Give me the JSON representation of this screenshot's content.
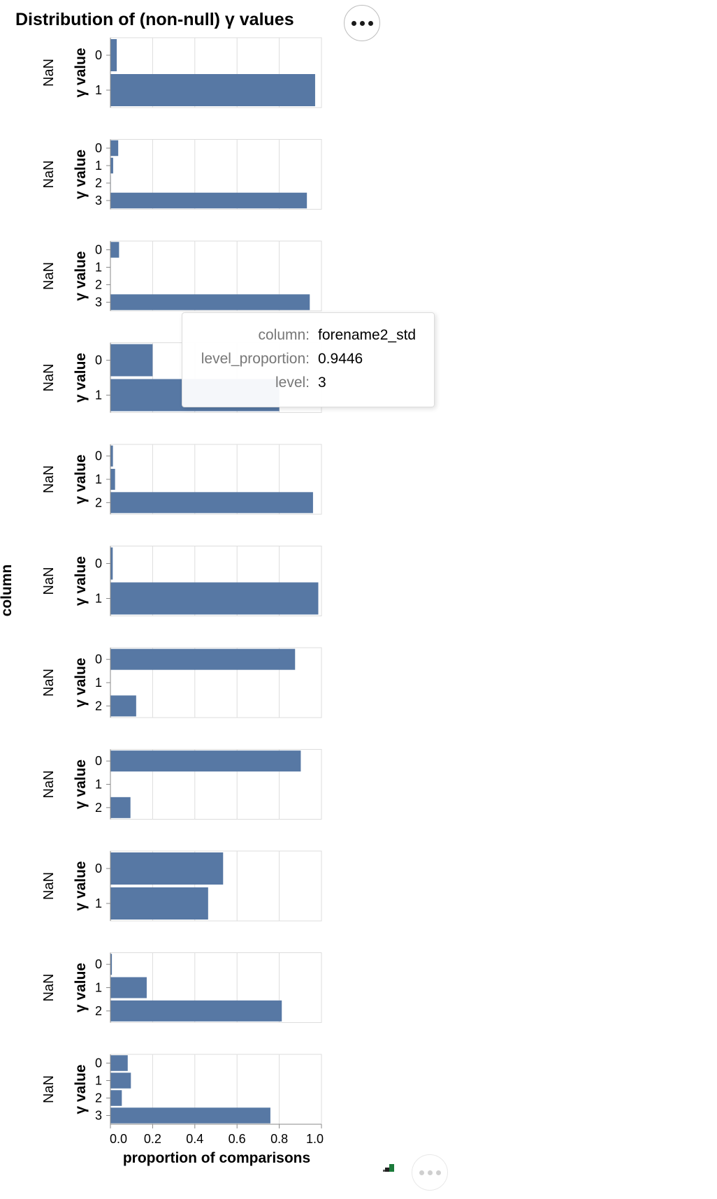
{
  "chart_data": {
    "type": "bar",
    "orientation": "horizontal",
    "title": "Distribution of (non-null) γ values",
    "xlabel": "proportion of comparisons",
    "ylabel": "γ value",
    "facet_label": "column",
    "facet_header": "NaN",
    "xlim": [
      0,
      1
    ],
    "x_ticks": [
      "0.0",
      "0.2",
      "0.4",
      "0.6",
      "0.8",
      "1.0"
    ],
    "grid": true,
    "bar_color": "#5778a4",
    "facets": [
      {
        "levels": [
          "0",
          "1"
        ],
        "values": [
          0.03,
          0.97
        ]
      },
      {
        "levels": [
          "0",
          "1",
          "2",
          "3"
        ],
        "values": [
          0.037,
          0.013,
          0.002,
          0.931
        ]
      },
      {
        "levels": [
          "0",
          "1",
          "2",
          "3"
        ],
        "values": [
          0.041,
          0.0,
          0.0,
          0.9446
        ]
      },
      {
        "levels": [
          "0",
          "1"
        ],
        "values": [
          0.2,
          0.8
        ]
      },
      {
        "levels": [
          "0",
          "1",
          "2"
        ],
        "values": [
          0.012,
          0.022,
          0.96
        ]
      },
      {
        "levels": [
          "0",
          "1"
        ],
        "values": [
          0.011,
          0.985
        ]
      },
      {
        "levels": [
          "0",
          "1",
          "2"
        ],
        "values": [
          0.875,
          0.0,
          0.122
        ]
      },
      {
        "levels": [
          "0",
          "1",
          "2"
        ],
        "values": [
          0.902,
          0.0,
          0.095
        ]
      },
      {
        "levels": [
          "0",
          "1"
        ],
        "values": [
          0.534,
          0.463
        ]
      },
      {
        "levels": [
          "0",
          "1",
          "2"
        ],
        "values": [
          0.007,
          0.172,
          0.812
        ]
      },
      {
        "levels": [
          "0",
          "1",
          "2",
          "3"
        ],
        "values": [
          0.082,
          0.097,
          0.054,
          0.758
        ]
      }
    ]
  },
  "tooltip": {
    "rows": [
      {
        "key": "column:",
        "value": "forename2_std"
      },
      {
        "key": "level_proportion:",
        "value": "0.9446"
      },
      {
        "key": "level:",
        "value": "3"
      }
    ]
  },
  "toolbar": {
    "menu_icon": "ellipsis-icon"
  }
}
